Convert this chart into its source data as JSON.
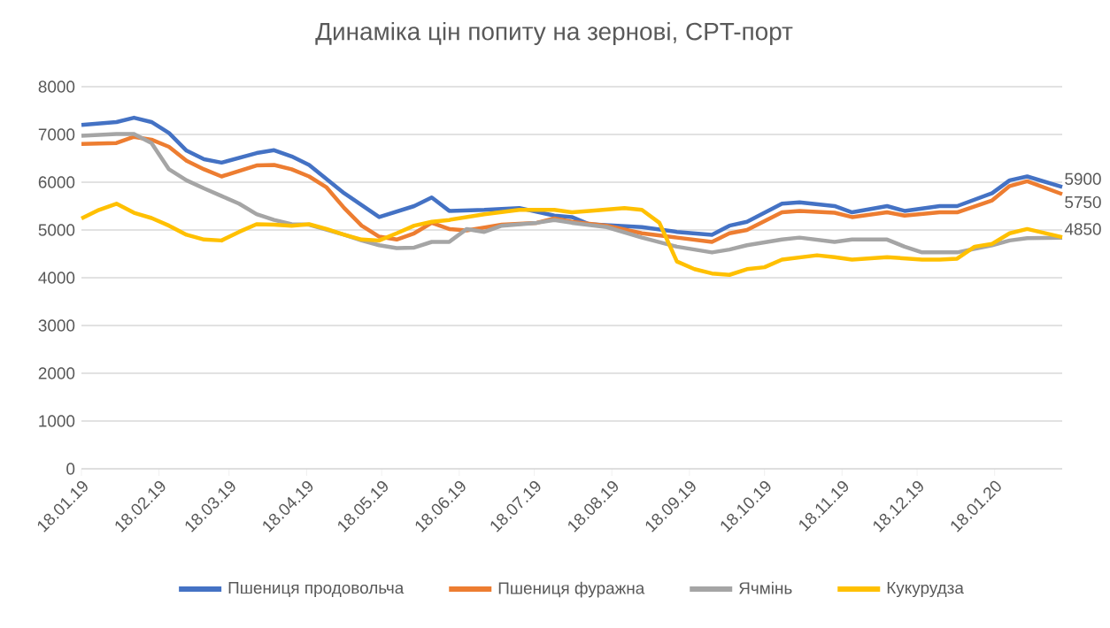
{
  "chart_data": {
    "type": "line",
    "title": "Динаміка цін попиту на зернові, CPT-порт",
    "xlim": [
      "2019-01-18",
      "2020-02-14"
    ],
    "xticks": [
      {
        "value": "2019-01-18",
        "label": "18.01.19"
      },
      {
        "value": "2019-02-18",
        "label": "18.02.19"
      },
      {
        "value": "2019-03-18",
        "label": "18.03.19"
      },
      {
        "value": "2019-04-18",
        "label": "18.04.19"
      },
      {
        "value": "2019-05-18",
        "label": "18.05.19"
      },
      {
        "value": "2019-06-18",
        "label": "18.06.19"
      },
      {
        "value": "2019-07-18",
        "label": "18.07.19"
      },
      {
        "value": "2019-08-18",
        "label": "18.08.19"
      },
      {
        "value": "2019-09-18",
        "label": "18.09.19"
      },
      {
        "value": "2019-10-18",
        "label": "18.10.19"
      },
      {
        "value": "2019-11-18",
        "label": "18.11.19"
      },
      {
        "value": "2019-12-18",
        "label": "18.12.19"
      },
      {
        "value": "2020-01-18",
        "label": "18.01.20"
      }
    ],
    "ylim": [
      0,
      8000
    ],
    "yticks": [
      0,
      1000,
      2000,
      3000,
      4000,
      5000,
      6000,
      7000,
      8000
    ],
    "grid": "y",
    "legend": "bottom",
    "marker": "none",
    "line_style": "solid",
    "series": [
      {
        "name": "Пшениця продовольча",
        "color": "#4472c4",
        "x": [
          "2019-01-18",
          "2019-02-01",
          "2019-02-08",
          "2019-02-15",
          "2019-02-22",
          "2019-03-01",
          "2019-03-08",
          "2019-03-15",
          "2019-03-29",
          "2019-04-05",
          "2019-04-12",
          "2019-04-19",
          "2019-05-03",
          "2019-05-17",
          "2019-05-31",
          "2019-06-07",
          "2019-06-14",
          "2019-06-28",
          "2019-07-12",
          "2019-07-26",
          "2019-08-02",
          "2019-08-09",
          "2019-08-30",
          "2019-09-13",
          "2019-09-27",
          "2019-10-04",
          "2019-10-11",
          "2019-10-25",
          "2019-11-01",
          "2019-11-15",
          "2019-11-22",
          "2019-12-06",
          "2019-12-13",
          "2019-12-27",
          "2020-01-03",
          "2020-01-17",
          "2020-01-24",
          "2020-01-31",
          "2020-02-14"
        ],
        "values": [
          7200,
          7260,
          7350,
          7260,
          7030,
          6660,
          6480,
          6410,
          6610,
          6670,
          6540,
          6360,
          5770,
          5270,
          5500,
          5680,
          5400,
          5420,
          5460,
          5300,
          5270,
          5120,
          5060,
          4960,
          4900,
          5090,
          5170,
          5550,
          5580,
          5500,
          5370,
          5500,
          5400,
          5500,
          5500,
          5770,
          6040,
          6120,
          5900
        ],
        "value_labels": [
          null,
          null,
          null,
          null,
          null,
          null,
          null,
          null,
          null,
          null,
          null,
          null,
          null,
          null,
          null,
          null,
          null,
          null,
          null,
          null,
          null,
          null,
          null,
          null,
          null,
          null,
          null,
          null,
          null,
          null,
          null,
          null,
          null,
          null,
          null,
          null,
          null,
          null,
          "5900"
        ]
      },
      {
        "name": "Пшениця фуражна",
        "color": "#ed7d31",
        "x": [
          "2019-01-18",
          "2019-02-01",
          "2019-02-08",
          "2019-02-15",
          "2019-02-22",
          "2019-03-01",
          "2019-03-08",
          "2019-03-15",
          "2019-03-29",
          "2019-04-05",
          "2019-04-12",
          "2019-04-19",
          "2019-04-26",
          "2019-05-03",
          "2019-05-10",
          "2019-05-17",
          "2019-05-24",
          "2019-05-31",
          "2019-06-07",
          "2019-06-14",
          "2019-06-21",
          "2019-07-05",
          "2019-07-19",
          "2019-07-26",
          "2019-08-02",
          "2019-08-16",
          "2019-08-30",
          "2019-09-13",
          "2019-09-27",
          "2019-10-04",
          "2019-10-11",
          "2019-10-25",
          "2019-11-01",
          "2019-11-15",
          "2019-11-22",
          "2019-12-06",
          "2019-12-13",
          "2019-12-27",
          "2020-01-03",
          "2020-01-17",
          "2020-01-24",
          "2020-01-31",
          "2020-02-14"
        ],
        "values": [
          6800,
          6820,
          6950,
          6890,
          6740,
          6450,
          6270,
          6120,
          6350,
          6360,
          6270,
          6120,
          5890,
          5460,
          5090,
          4860,
          4800,
          4930,
          5150,
          5020,
          4990,
          5110,
          5150,
          5240,
          5170,
          5090,
          4930,
          4840,
          4750,
          4930,
          5000,
          5370,
          5400,
          5360,
          5270,
          5370,
          5300,
          5370,
          5370,
          5620,
          5920,
          6020,
          5750
        ],
        "value_labels": [
          null,
          null,
          null,
          null,
          null,
          null,
          null,
          null,
          null,
          null,
          null,
          null,
          null,
          null,
          null,
          null,
          null,
          null,
          null,
          null,
          null,
          null,
          null,
          null,
          null,
          null,
          null,
          null,
          null,
          null,
          null,
          null,
          null,
          null,
          null,
          null,
          null,
          null,
          null,
          null,
          null,
          null,
          "5750"
        ]
      },
      {
        "name": "Ячмінь",
        "color": "#a5a5a5",
        "x": [
          "2019-01-18",
          "2019-02-01",
          "2019-02-08",
          "2019-02-15",
          "2019-02-22",
          "2019-03-01",
          "2019-03-08",
          "2019-03-15",
          "2019-03-22",
          "2019-03-29",
          "2019-04-05",
          "2019-04-12",
          "2019-04-19",
          "2019-05-03",
          "2019-05-10",
          "2019-05-17",
          "2019-05-24",
          "2019-05-31",
          "2019-06-07",
          "2019-06-14",
          "2019-06-21",
          "2019-06-28",
          "2019-07-05",
          "2019-07-19",
          "2019-07-26",
          "2019-08-02",
          "2019-08-16",
          "2019-08-30",
          "2019-09-13",
          "2019-09-27",
          "2019-10-04",
          "2019-10-11",
          "2019-10-25",
          "2019-11-01",
          "2019-11-15",
          "2019-11-22",
          "2019-12-06",
          "2019-12-13",
          "2019-12-20",
          "2020-01-03",
          "2020-01-17",
          "2020-01-24",
          "2020-01-31",
          "2020-02-14"
        ],
        "values": [
          6970,
          7010,
          7010,
          6820,
          6270,
          6040,
          5870,
          5710,
          5550,
          5330,
          5210,
          5120,
          5110,
          4900,
          4780,
          4680,
          4620,
          4630,
          4750,
          4750,
          5020,
          4960,
          5090,
          5150,
          5210,
          5150,
          5060,
          4840,
          4650,
          4530,
          4590,
          4680,
          4800,
          4840,
          4750,
          4800,
          4800,
          4650,
          4530,
          4530,
          4680,
          4780,
          4830,
          4840
        ]
      },
      {
        "name": "Кукурудза",
        "color": "#ffc000",
        "x": [
          "2019-01-18",
          "2019-01-25",
          "2019-02-01",
          "2019-02-08",
          "2019-02-15",
          "2019-02-22",
          "2019-03-01",
          "2019-03-08",
          "2019-03-15",
          "2019-03-22",
          "2019-03-29",
          "2019-04-05",
          "2019-04-12",
          "2019-04-19",
          "2019-04-26",
          "2019-05-03",
          "2019-05-10",
          "2019-05-17",
          "2019-05-24",
          "2019-05-31",
          "2019-06-07",
          "2019-06-14",
          "2019-06-28",
          "2019-07-12",
          "2019-07-26",
          "2019-08-02",
          "2019-08-09",
          "2019-08-23",
          "2019-08-30",
          "2019-09-06",
          "2019-09-13",
          "2019-09-20",
          "2019-09-27",
          "2019-10-04",
          "2019-10-11",
          "2019-10-18",
          "2019-10-25",
          "2019-11-08",
          "2019-11-15",
          "2019-11-22",
          "2019-12-06",
          "2019-12-20",
          "2019-12-27",
          "2020-01-03",
          "2020-01-10",
          "2020-01-17",
          "2020-01-24",
          "2020-01-31",
          "2020-02-14"
        ],
        "values": [
          5240,
          5420,
          5550,
          5360,
          5250,
          5090,
          4900,
          4800,
          4780,
          4960,
          5120,
          5110,
          5090,
          5120,
          5020,
          4900,
          4800,
          4780,
          4930,
          5090,
          5170,
          5210,
          5330,
          5420,
          5420,
          5370,
          5400,
          5460,
          5420,
          5150,
          4340,
          4180,
          4090,
          4060,
          4180,
          4220,
          4380,
          4470,
          4430,
          4380,
          4430,
          4380,
          4380,
          4400,
          4650,
          4710,
          4930,
          5020,
          4850
        ],
        "value_labels": [
          null,
          null,
          null,
          null,
          null,
          null,
          null,
          null,
          null,
          null,
          null,
          null,
          null,
          null,
          null,
          null,
          null,
          null,
          null,
          null,
          null,
          null,
          null,
          null,
          null,
          null,
          null,
          null,
          null,
          null,
          null,
          null,
          null,
          null,
          null,
          null,
          null,
          null,
          null,
          null,
          null,
          null,
          null,
          null,
          null,
          null,
          null,
          null,
          "4850"
        ]
      }
    ]
  }
}
